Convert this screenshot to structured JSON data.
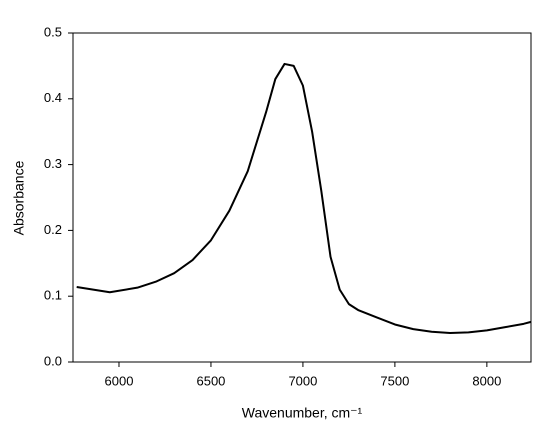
{
  "chart_data": {
    "type": "line",
    "xlabel": "Wavenumber, cm⁻¹",
    "ylabel": "Absorbance",
    "series": [
      {
        "color": "#000000",
        "x": [
          5770,
          5950,
          6100,
          6200,
          6300,
          6400,
          6500,
          6600,
          6700,
          6800,
          6850,
          6900,
          6950,
          7000,
          7050,
          7100,
          7150,
          7200,
          7250,
          7300,
          7400,
          7500,
          7600,
          7700,
          7800,
          7900,
          8000,
          8100,
          8200,
          8240
        ],
        "values": [
          0.114,
          0.106,
          0.113,
          0.122,
          0.135,
          0.155,
          0.185,
          0.23,
          0.29,
          0.38,
          0.43,
          0.453,
          0.45,
          0.42,
          0.35,
          0.26,
          0.16,
          0.11,
          0.088,
          0.079,
          0.068,
          0.057,
          0.05,
          0.046,
          0.044,
          0.045,
          0.048,
          0.053,
          0.058,
          0.061
        ]
      }
    ],
    "xlim": [
      5750,
      8240
    ],
    "ylim": [
      0,
      0.5
    ],
    "xticks": [
      6000,
      6500,
      7000,
      7500,
      8000
    ],
    "yticks": [
      {
        "value": 0,
        "label": "0.0"
      },
      0.1,
      0.2,
      0.3,
      0.4,
      0.5
    ]
  }
}
